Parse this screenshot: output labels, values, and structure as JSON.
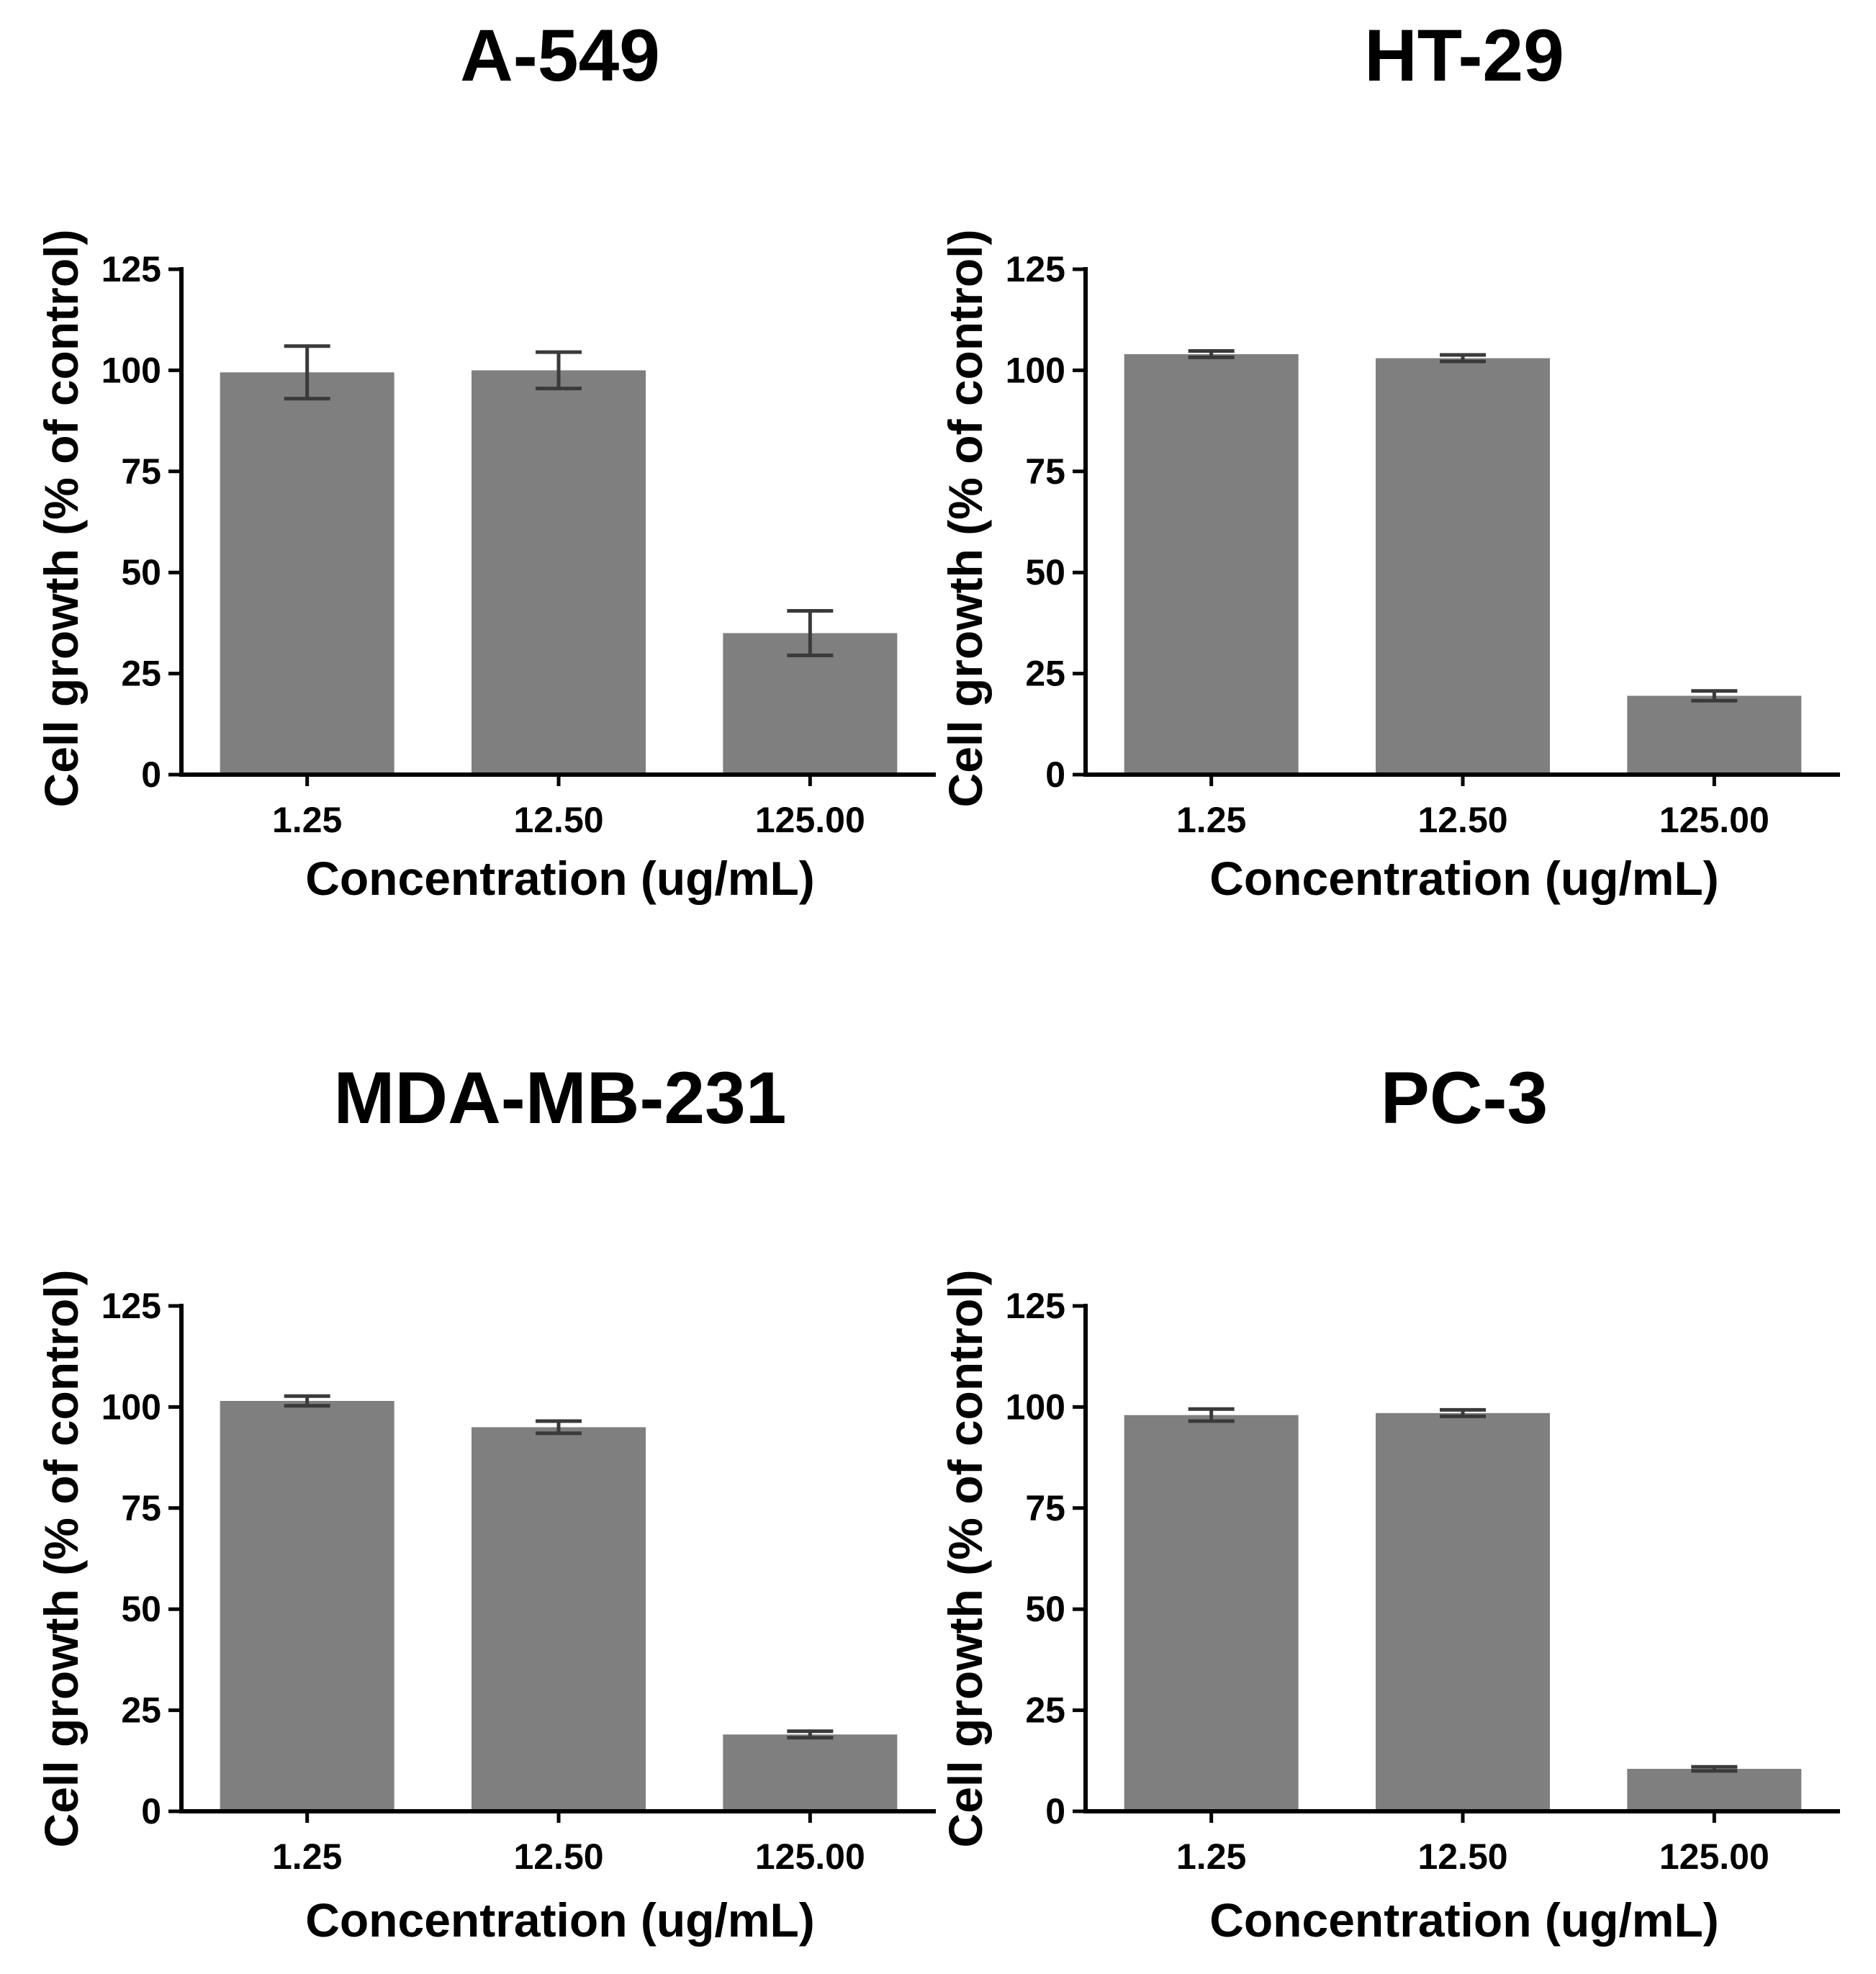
{
  "figure": {
    "bar_color": "#7f7f7f",
    "error_color": "#3a3a3a",
    "axis_color": "#000000",
    "background": "#ffffff"
  },
  "chart_data": [
    {
      "type": "bar",
      "title": "A-549",
      "categories": [
        "1.25",
        "12.50",
        "125.00"
      ],
      "values": [
        99.5,
        100.0,
        35.0
      ],
      "errors": [
        6.5,
        4.5,
        5.5
      ],
      "xlabel": "Concentration (ug/mL)",
      "ylabel": "Cell growth (% of control)",
      "ylim": [
        0,
        125
      ],
      "yticks": [
        0,
        25,
        50,
        75,
        100,
        125
      ],
      "ytick_labels": [
        "0",
        "25",
        "50",
        "75",
        "100",
        "125"
      ],
      "grid": false
    },
    {
      "type": "bar",
      "title": "HT-29",
      "categories": [
        "1.25",
        "12.50",
        "125.00"
      ],
      "values": [
        104.0,
        103.0,
        19.5
      ],
      "errors": [
        0.8,
        0.8,
        1.2
      ],
      "xlabel": "Concentration (ug/mL)",
      "ylabel": "Cell growth (% of control)",
      "ylim": [
        0,
        125
      ],
      "yticks": [
        0,
        25,
        50,
        75,
        100,
        125
      ],
      "ytick_labels": [
        "0",
        "25",
        "50",
        "75",
        "100",
        "125"
      ],
      "grid": false
    },
    {
      "type": "bar",
      "title": "MDA-MB-231",
      "categories": [
        "1.25",
        "12.50",
        "125.00"
      ],
      "values": [
        101.5,
        95.0,
        19.0
      ],
      "errors": [
        1.2,
        1.5,
        0.8
      ],
      "xlabel": "Concentration (ug/mL)",
      "ylabel": "Cell growth (% of control)",
      "ylim": [
        0,
        125
      ],
      "yticks": [
        0,
        25,
        50,
        75,
        100,
        125
      ],
      "ytick_labels": [
        "0",
        "25",
        "50",
        "75",
        "100",
        "125"
      ],
      "grid": false
    },
    {
      "type": "bar",
      "title": "PC-3",
      "categories": [
        "1.25",
        "12.50",
        "125.00"
      ],
      "values": [
        98.0,
        98.5,
        10.5
      ],
      "errors": [
        1.5,
        0.8,
        0.5
      ],
      "xlabel": "Concentration (ug/mL)",
      "ylabel": "Cell growth (% of control)",
      "ylim": [
        0,
        125
      ],
      "yticks": [
        0,
        25,
        50,
        75,
        100,
        125
      ],
      "ytick_labels": [
        "0",
        "25",
        "50",
        "75",
        "100",
        "125"
      ],
      "grid": false
    }
  ]
}
